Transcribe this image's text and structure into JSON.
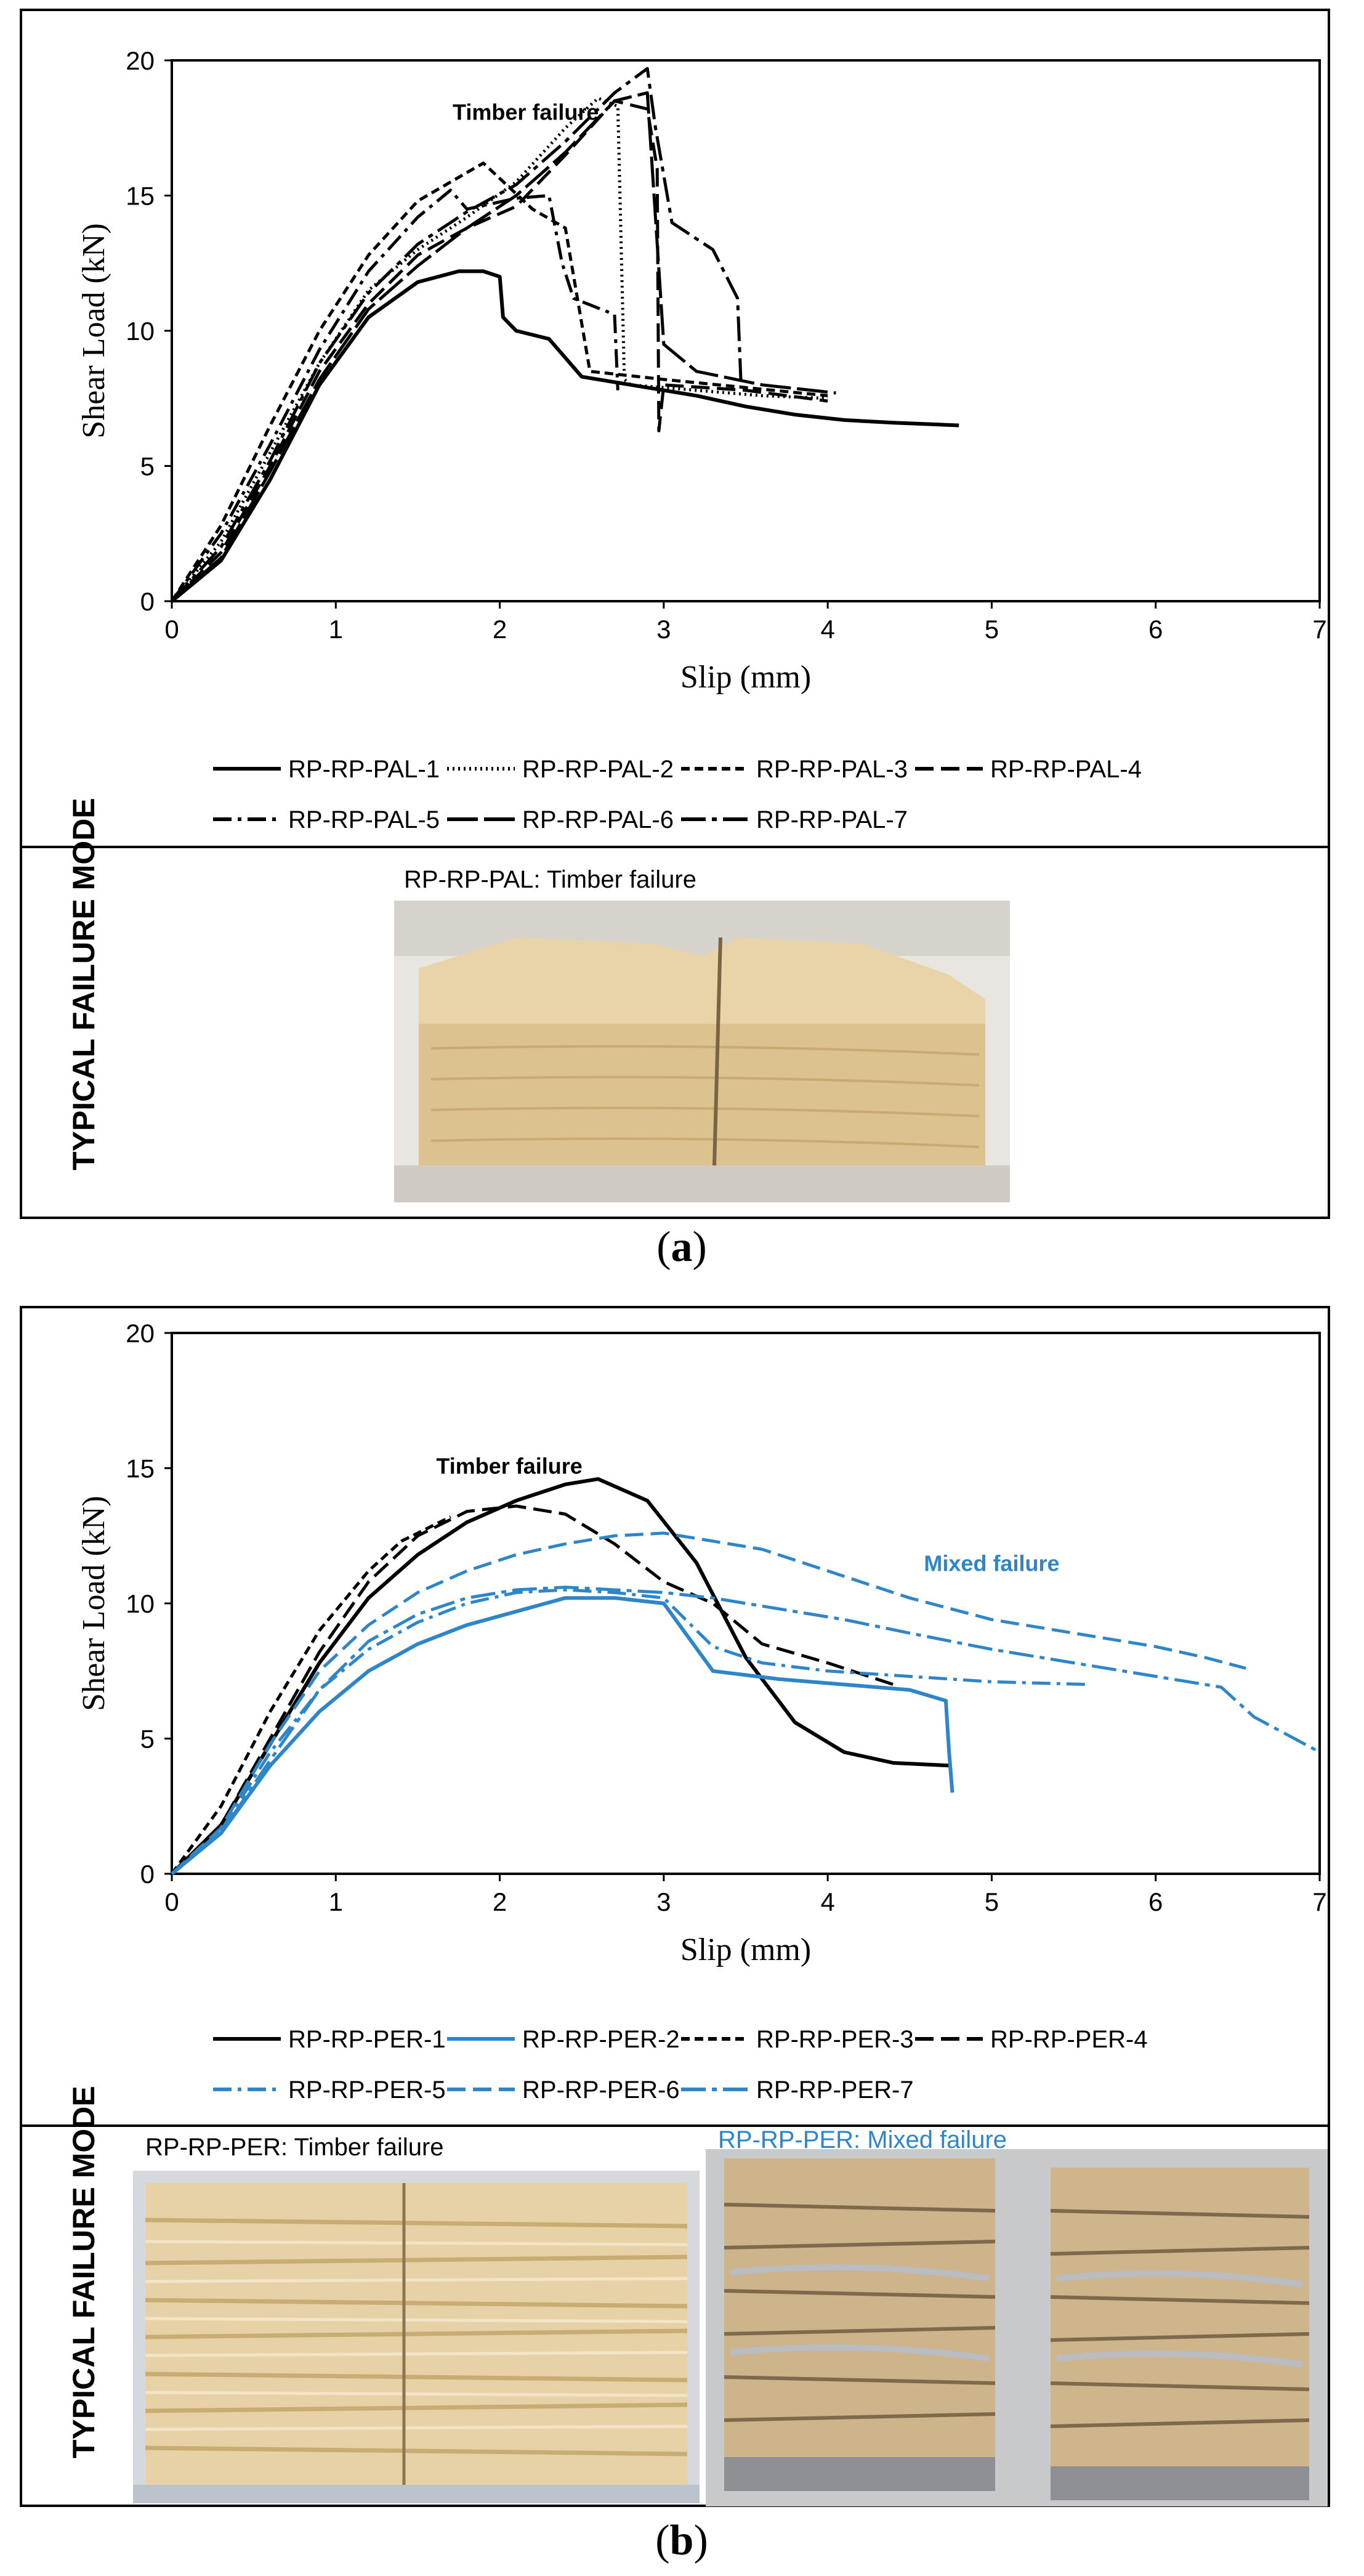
{
  "figure_a": {
    "letter": "a",
    "failure_mode_label": "TYPICAL FAILURE MODE",
    "photo_caption": "RP-RP-PAL: Timber failure",
    "annotation": "Timber failure"
  },
  "figure_b": {
    "letter": "b",
    "failure_mode_label": "TYPICAL FAILURE MODE",
    "photo_caption_left": "RP-RP-PER: Timber failure",
    "photo_caption_right": "RP-RP-PER: Mixed failure",
    "annotation_black": "Timber failure",
    "annotation_blue": "Mixed failure"
  },
  "colors": {
    "black": "#000000",
    "blue": "#2E86C8",
    "wood_light": "#E8D4A8",
    "wood_mid": "#D8BE8A"
  },
  "chart_data": [
    {
      "type": "line",
      "xlabel": "Slip (mm)",
      "ylabel": "Shear Load (kN)",
      "xlim": [
        0,
        7
      ],
      "ylim": [
        0,
        20
      ],
      "xticks": [
        "0",
        "1",
        "2",
        "3",
        "4",
        "5",
        "6",
        "7"
      ],
      "yticks": [
        "0",
        "5",
        "10",
        "15",
        "20"
      ],
      "grid": false,
      "legend_position": "bottom",
      "annotation": {
        "text": "Timber failure",
        "x": 1.6,
        "y": 17.8
      },
      "series": [
        {
          "name": "RP-RP-PAL-1",
          "dash": "solid",
          "x": [
            0,
            0.3,
            0.6,
            0.9,
            1.2,
            1.5,
            1.75,
            1.9,
            2.0,
            2.02,
            2.1,
            2.3,
            2.5,
            2.8,
            3.2,
            3.5,
            3.8,
            4.1,
            4.4,
            4.8
          ],
          "y": [
            0,
            1.5,
            4.5,
            8,
            10.5,
            11.8,
            12.2,
            12.2,
            12,
            10.5,
            10,
            9.7,
            8.3,
            8.0,
            7.6,
            7.2,
            6.9,
            6.7,
            6.6,
            6.5
          ]
        },
        {
          "name": "RP-RP-PAL-2",
          "dash": "dotted",
          "x": [
            0,
            0.3,
            0.6,
            0.9,
            1.2,
            1.5,
            1.8,
            2.1,
            2.4,
            2.6,
            2.72,
            2.76,
            2.8,
            3.2,
            3.6,
            4.0
          ],
          "y": [
            0,
            2.2,
            5.5,
            8.8,
            11.5,
            13.0,
            14.2,
            15.5,
            17.5,
            18.6,
            18.3,
            8.2,
            8.0,
            7.8,
            7.6,
            7.5
          ]
        },
        {
          "name": "RP-RP-PAL-3",
          "dash": "dashed",
          "x": [
            0,
            0.3,
            0.6,
            0.9,
            1.2,
            1.5,
            1.9,
            2.2,
            2.4,
            2.55,
            3.0,
            3.5,
            4.0
          ],
          "y": [
            0,
            2.8,
            6.5,
            10.0,
            12.8,
            14.8,
            16.2,
            14.5,
            13.8,
            8.5,
            8.2,
            7.9,
            7.6
          ]
        },
        {
          "name": "RP-RP-PAL-4",
          "dash": "longdash",
          "x": [
            0,
            0.3,
            0.6,
            0.9,
            1.2,
            1.5,
            1.8,
            2.1,
            2.4,
            2.7,
            2.9,
            2.96,
            2.97,
            3.0,
            3.5,
            4.0
          ],
          "y": [
            0,
            1.8,
            5.0,
            8.5,
            11.0,
            12.8,
            13.8,
            14.6,
            16.5,
            18.5,
            18.2,
            16.0,
            6.3,
            8.0,
            7.8,
            7.4
          ]
        },
        {
          "name": "RP-RP-PAL-5",
          "dash": "dashdot",
          "x": [
            0,
            0.3,
            0.6,
            0.9,
            1.2,
            1.5,
            1.7,
            1.8,
            2.1,
            2.3,
            2.38,
            2.45,
            2.7,
            2.72
          ],
          "y": [
            0,
            2.5,
            5.8,
            9.3,
            12.2,
            14.2,
            15.2,
            14.5,
            14.9,
            15.0,
            12.5,
            11.2,
            10.6,
            7.8
          ]
        },
        {
          "name": "RP-RP-PAL-6",
          "dash": "longdash2",
          "x": [
            0,
            0.3,
            0.6,
            0.9,
            1.2,
            1.5,
            1.8,
            2.1,
            2.4,
            2.7,
            2.9,
            3.0,
            3.2,
            3.6,
            4.05
          ],
          "y": [
            0,
            1.6,
            4.8,
            8.2,
            10.8,
            12.4,
            13.8,
            15.0,
            16.6,
            18.5,
            18.8,
            9.5,
            8.5,
            8.0,
            7.7
          ]
        },
        {
          "name": "RP-RP-PAL-7",
          "dash": "dashdot2",
          "x": [
            0,
            0.3,
            0.6,
            0.9,
            1.2,
            1.5,
            1.8,
            2.1,
            2.4,
            2.7,
            2.9,
            2.95,
            3.05,
            3.3,
            3.45,
            3.47
          ],
          "y": [
            0,
            2.0,
            5.2,
            8.8,
            11.4,
            13.2,
            14.4,
            15.4,
            17.0,
            18.8,
            19.7,
            17.5,
            14.0,
            13.0,
            11.2,
            8.2
          ]
        }
      ]
    },
    {
      "type": "line",
      "xlabel": "Slip (mm)",
      "ylabel": "Shear Load (kN)",
      "xlim": [
        0,
        7
      ],
      "ylim": [
        0,
        20
      ],
      "xticks": [
        "0",
        "1",
        "2",
        "3",
        "4",
        "5",
        "6",
        "7"
      ],
      "yticks": [
        "0",
        "5",
        "10",
        "15",
        "20"
      ],
      "grid": false,
      "legend_position": "bottom",
      "annotations": [
        {
          "text": "Timber failure",
          "x": 1.5,
          "y": 14.8
        },
        {
          "text": "Mixed failure",
          "x": 5.0,
          "y": 11.2
        }
      ],
      "series": [
        {
          "name": "RP-RP-PER-1",
          "color": "black",
          "dash": "solid",
          "x": [
            0,
            0.3,
            0.6,
            0.9,
            1.2,
            1.5,
            1.8,
            2.1,
            2.4,
            2.6,
            2.9,
            3.2,
            3.5,
            3.8,
            4.1,
            4.4,
            4.75
          ],
          "y": [
            0,
            1.8,
            4.8,
            7.8,
            10.2,
            11.8,
            13.0,
            13.8,
            14.4,
            14.6,
            13.8,
            11.5,
            8.0,
            5.6,
            4.5,
            4.1,
            4.0
          ]
        },
        {
          "name": "RP-RP-PER-2",
          "color": "blue",
          "dash": "solid",
          "x": [
            0,
            0.3,
            0.6,
            0.9,
            1.2,
            1.5,
            1.8,
            2.1,
            2.4,
            2.7,
            3.0,
            3.3,
            3.7,
            4.1,
            4.5,
            4.72,
            4.74,
            4.76
          ],
          "y": [
            0,
            1.5,
            4.0,
            6.0,
            7.5,
            8.5,
            9.2,
            9.7,
            10.2,
            10.2,
            10.0,
            7.5,
            7.2,
            7.0,
            6.8,
            6.4,
            4.5,
            3.0
          ]
        },
        {
          "name": "RP-RP-PER-3",
          "color": "black",
          "dash": "dashed",
          "x": [
            0,
            0.3,
            0.6,
            0.9,
            1.2,
            1.4,
            1.6,
            1.7
          ],
          "y": [
            0,
            2.5,
            6.0,
            9.0,
            11.2,
            12.3,
            12.9,
            13.2
          ]
        },
        {
          "name": "RP-RP-PER-4",
          "color": "black",
          "dash": "longdash",
          "x": [
            0,
            0.3,
            0.6,
            0.9,
            1.2,
            1.5,
            1.8,
            2.1,
            2.4,
            2.7,
            3.0,
            3.3,
            3.6,
            4.0,
            4.4
          ],
          "y": [
            0,
            1.8,
            5.0,
            8.2,
            10.8,
            12.5,
            13.4,
            13.6,
            13.3,
            12.2,
            10.8,
            10.0,
            8.5,
            7.8,
            7.0
          ]
        },
        {
          "name": "RP-RP-PER-5",
          "color": "blue",
          "dash": "dashdot",
          "x": [
            0,
            0.3,
            0.6,
            0.9,
            1.2,
            1.5,
            1.8,
            2.1,
            2.4,
            2.7,
            3.0,
            3.3,
            3.6,
            4.0,
            4.5,
            5.0,
            5.6
          ],
          "y": [
            0,
            1.6,
            4.5,
            6.8,
            8.3,
            9.3,
            10.0,
            10.4,
            10.5,
            10.4,
            10.2,
            8.4,
            7.8,
            7.5,
            7.3,
            7.1,
            7.0
          ]
        },
        {
          "name": "RP-RP-PER-6",
          "color": "blue",
          "dash": "longdash",
          "x": [
            0,
            0.3,
            0.6,
            0.9,
            1.2,
            1.5,
            1.8,
            2.1,
            2.4,
            2.7,
            3.0,
            3.2,
            3.6,
            4.0,
            4.5,
            5.0,
            5.5,
            6.0,
            6.3,
            6.55
          ],
          "y": [
            0,
            1.7,
            4.8,
            7.5,
            9.2,
            10.4,
            11.2,
            11.8,
            12.2,
            12.5,
            12.6,
            12.4,
            12.0,
            11.2,
            10.2,
            9.4,
            8.9,
            8.4,
            8.0,
            7.6
          ]
        },
        {
          "name": "RP-RP-PER-7",
          "color": "blue",
          "dash": "dashdot2",
          "x": [
            0,
            0.3,
            0.6,
            0.9,
            1.2,
            1.5,
            1.8,
            2.1,
            2.4,
            2.7,
            3.0,
            3.3,
            3.7,
            4.1,
            4.5,
            5.0,
            5.5,
            6.0,
            6.4,
            6.6,
            7.0
          ],
          "y": [
            0,
            1.5,
            4.2,
            6.8,
            8.6,
            9.6,
            10.2,
            10.5,
            10.6,
            10.5,
            10.4,
            10.2,
            9.8,
            9.4,
            8.9,
            8.3,
            7.8,
            7.3,
            6.9,
            5.8,
            4.5
          ]
        }
      ]
    }
  ]
}
